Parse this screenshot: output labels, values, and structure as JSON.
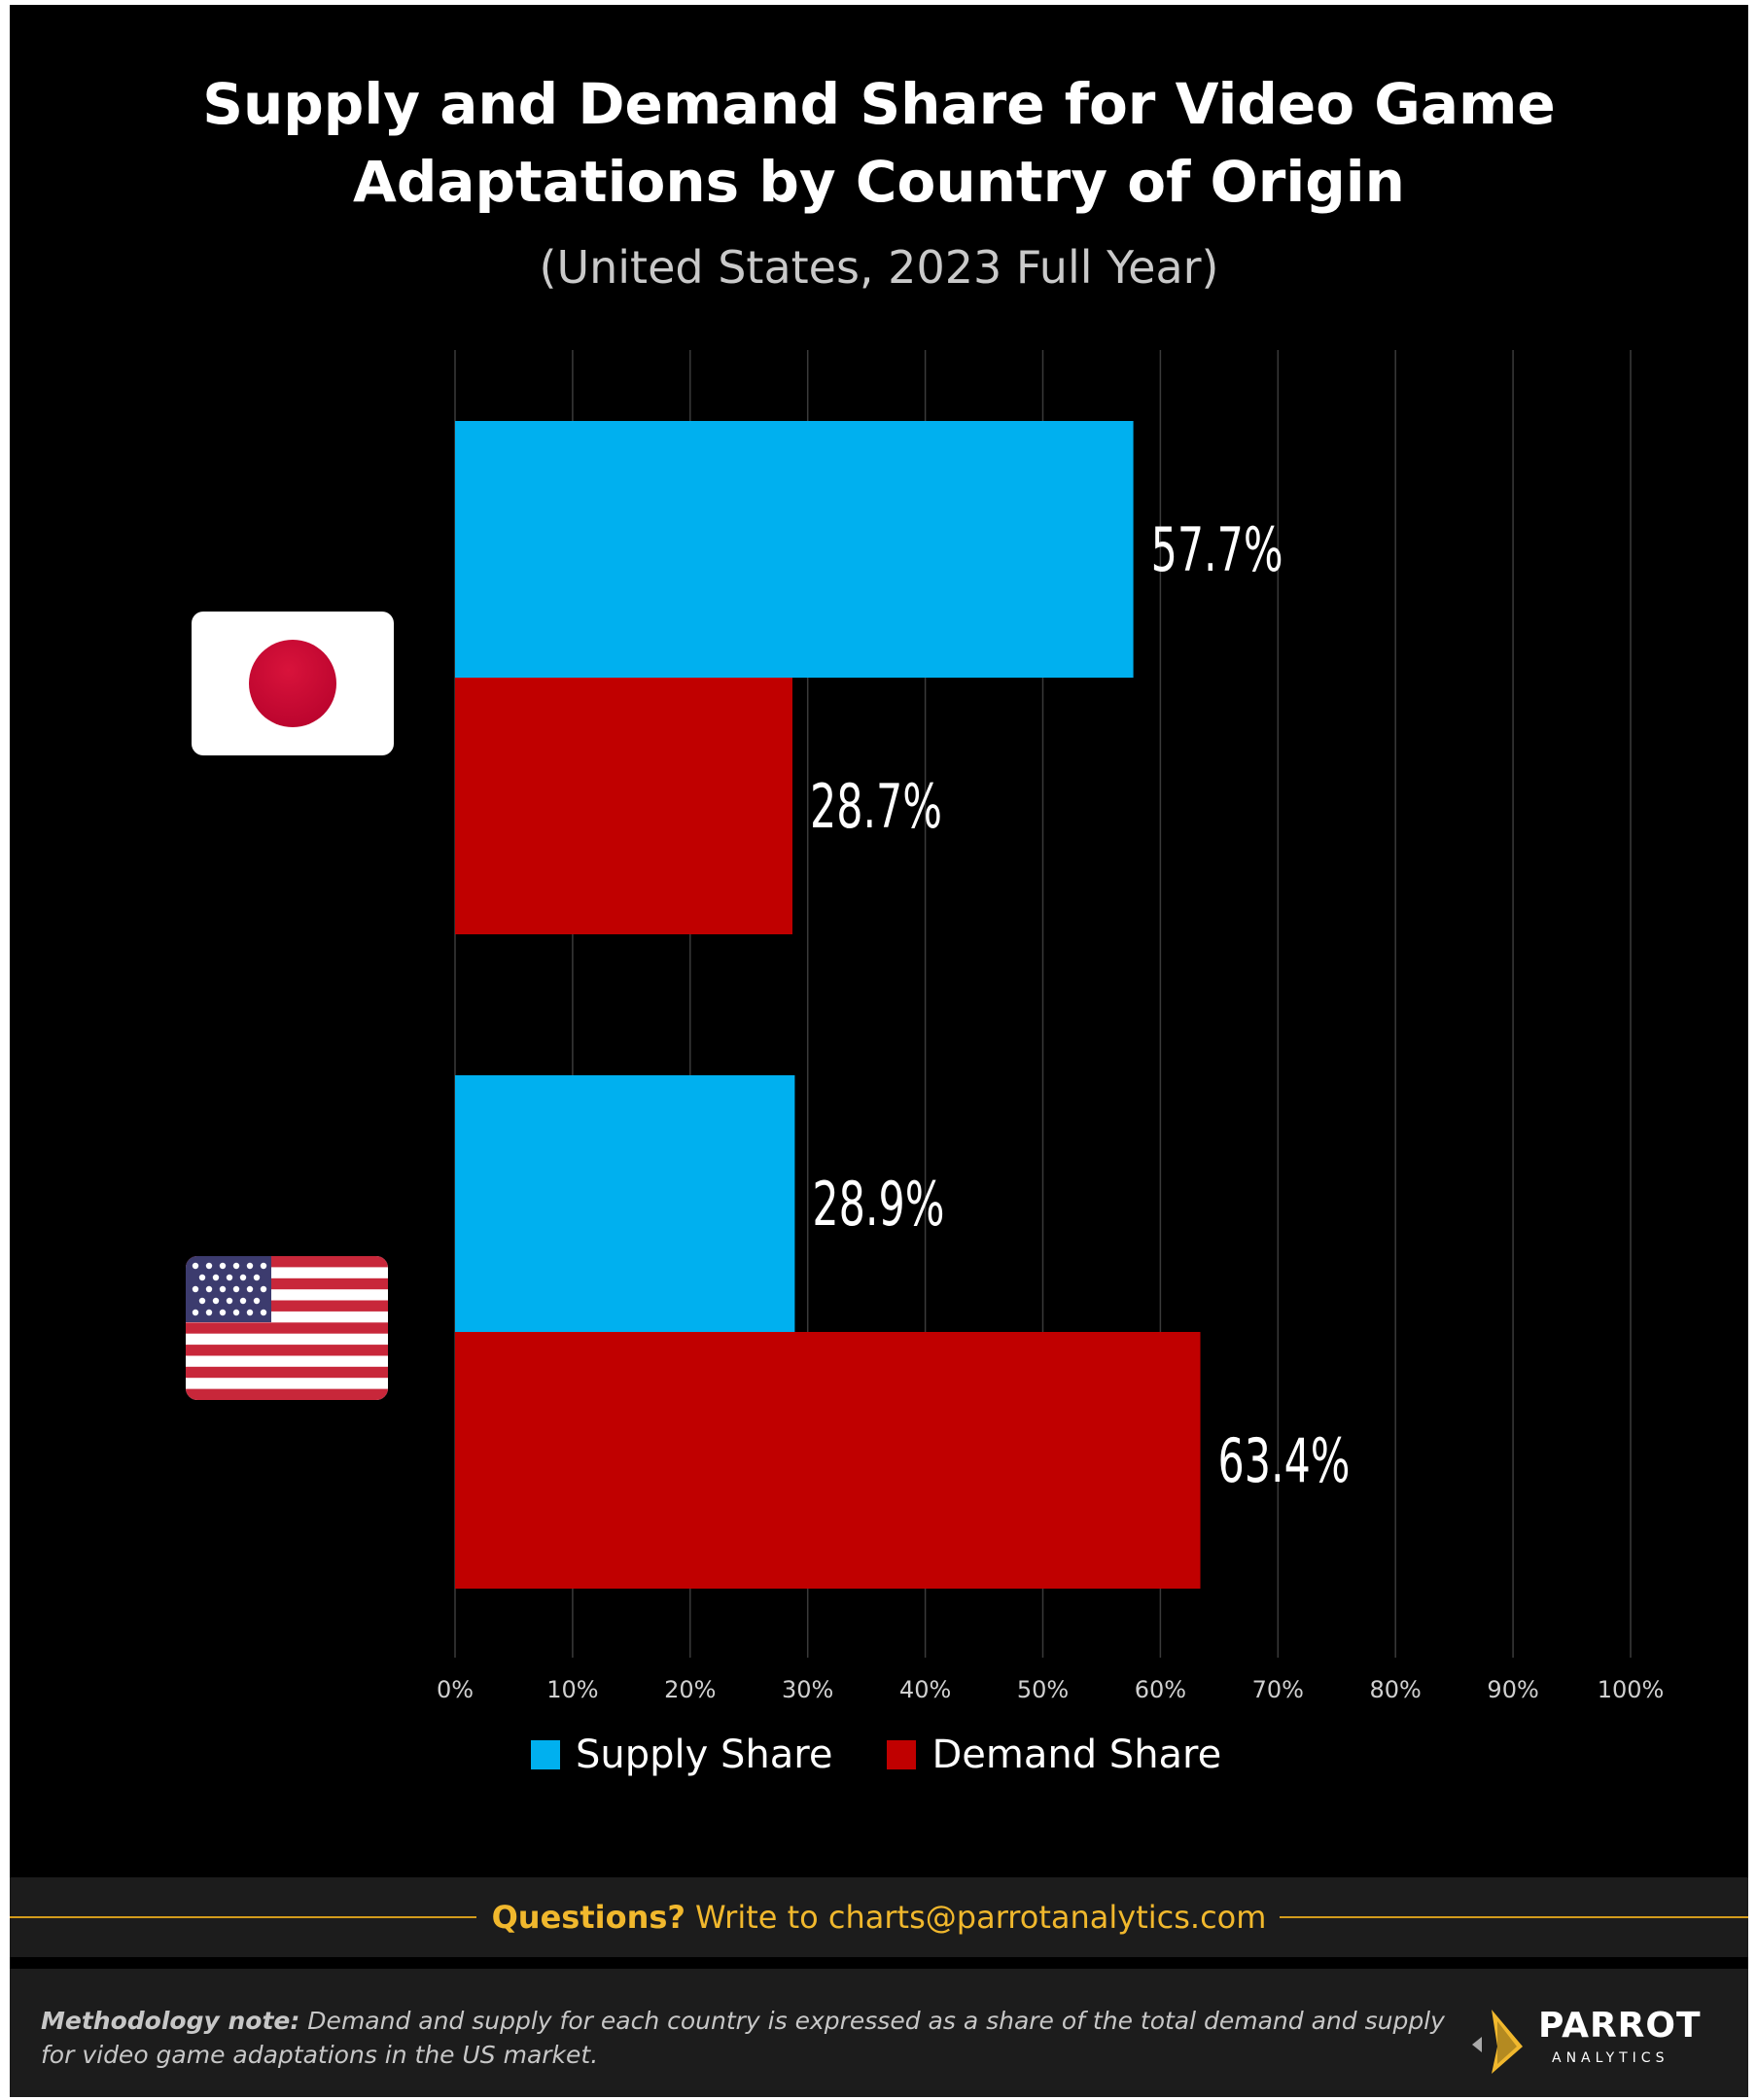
{
  "chart_data": {
    "type": "bar",
    "orientation": "horizontal",
    "title": "Supply and Demand Share for Video Game Adaptations by Country of Origin",
    "subtitle": "(United States, 2023 Full Year)",
    "categories": [
      "Japan",
      "United States"
    ],
    "series": [
      {
        "name": "Supply Share",
        "color": "#00b0ef",
        "values": [
          57.7,
          28.9
        ],
        "labels": [
          "57.7%",
          "28.9%"
        ]
      },
      {
        "name": "Demand Share",
        "color": "#c00000",
        "values": [
          28.7,
          63.4
        ],
        "labels": [
          "28.7%",
          "63.4%"
        ]
      }
    ],
    "xlim": [
      0,
      100
    ],
    "x_ticks": [
      "0%",
      "10%",
      "20%",
      "30%",
      "40%",
      "50%",
      "60%",
      "70%",
      "80%",
      "90%",
      "100%"
    ],
    "grid": true,
    "legend_position": "bottom",
    "category_icons": [
      "japan-flag-icon",
      "us-flag-icon"
    ]
  },
  "title_lines": [
    "Supply and Demand Share for Video Game",
    "Adaptations by Country of Origin"
  ],
  "questions": {
    "lead": "Questions?",
    "text": "Write to charts@parrotanalytics.com"
  },
  "methodology": {
    "lead": "Methodology note:",
    "text": " Demand and supply for each country is expressed as a share of the total demand and supply for video game adaptations in the US market."
  },
  "logo": {
    "name": "PARROT",
    "sub": "ANALYTICS"
  },
  "colors": {
    "background": "#000000",
    "supply": "#00b0ef",
    "demand": "#c00000",
    "accent": "#f1b82d"
  }
}
